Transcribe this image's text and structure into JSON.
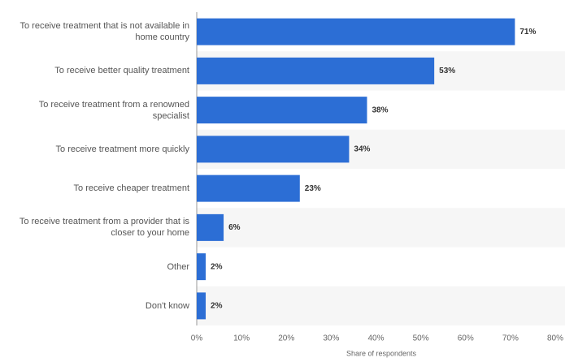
{
  "chart_data": {
    "type": "bar",
    "orientation": "horizontal",
    "categories": [
      "To receive treatment that is not available in home country",
      "To receive better quality treatment",
      "To receive treatment from a renowned specialist",
      "To receive treatment more quickly",
      "To receive cheaper treatment",
      "To receive treatment from a provider that is closer to your home",
      "Other",
      "Don't know"
    ],
    "values": [
      71,
      53,
      38,
      34,
      23,
      6,
      2,
      2
    ],
    "value_labels": [
      "71%",
      "53%",
      "38%",
      "34%",
      "23%",
      "6%",
      "2%",
      "2%"
    ],
    "color": "#2c6ed5",
    "xlabel": "Share of respondents",
    "xlim": [
      0,
      80
    ],
    "xticks": [
      {
        "value": 0,
        "label": "0%"
      },
      {
        "value": 10,
        "label": "10%"
      },
      {
        "value": 20,
        "label": "20%"
      },
      {
        "value": 30,
        "label": "30%"
      },
      {
        "value": 40,
        "label": "40%"
      },
      {
        "value": 50,
        "label": "50%"
      },
      {
        "value": 60,
        "label": "60%"
      },
      {
        "value": 70,
        "label": "70%"
      },
      {
        "value": 80,
        "label": "80%"
      }
    ],
    "grid": false
  }
}
